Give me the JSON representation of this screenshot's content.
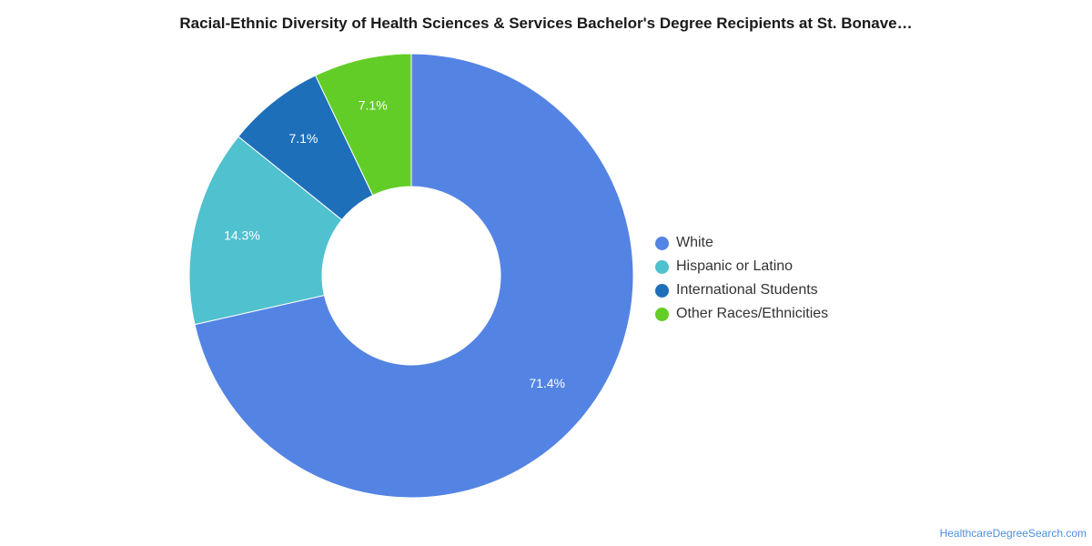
{
  "title": "Racial-Ethnic Diversity of Health Sciences & Services Bachelor's Degree Recipients at St. Bonave…",
  "source": "HealthcareDegreeSearch.com",
  "chart_data": {
    "type": "pie",
    "variant": "donut",
    "title": "Racial-Ethnic Diversity of Health Sciences & Services Bachelor's Degree Recipients at St. Bonave…",
    "categories": [
      "White",
      "Hispanic or Latino",
      "International Students",
      "Other Races/Ethnicities"
    ],
    "values": [
      71.4,
      14.3,
      7.1,
      7.1
    ],
    "labels": [
      "71.4%",
      "14.3%",
      "7.1%",
      "7.1%"
    ],
    "colors": [
      "#5484E3",
      "#50C1CE",
      "#1E6FBA",
      "#62CD27"
    ],
    "legend_position": "right"
  }
}
